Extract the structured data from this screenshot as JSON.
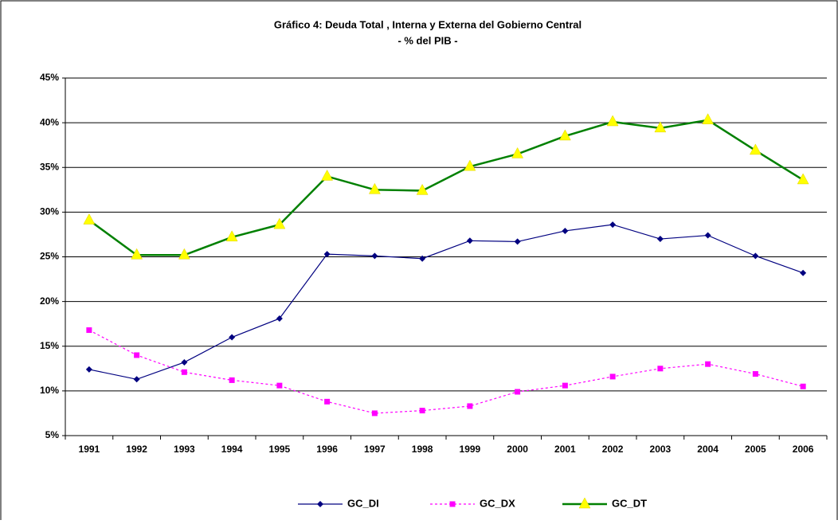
{
  "chart_data": {
    "type": "line",
    "title": "Gráfico 4: Deuda Total , Interna y Externa del Gobierno Central",
    "subtitle": "- % del PIB -",
    "categories": [
      "1991",
      "1992",
      "1993",
      "1994",
      "1995",
      "1996",
      "1997",
      "1998",
      "1999",
      "2000",
      "2001",
      "2002",
      "2003",
      "2004",
      "2005",
      "2006"
    ],
    "series": [
      {
        "name": "GC_DI",
        "color": "#000080",
        "marker": "diamond",
        "dash": false,
        "values": [
          12.4,
          11.3,
          13.2,
          16.0,
          18.1,
          25.3,
          25.1,
          24.8,
          26.8,
          26.7,
          27.9,
          28.6,
          27.0,
          27.4,
          25.1,
          23.2
        ]
      },
      {
        "name": "GC_DX",
        "color": "#ff00ff",
        "marker": "square",
        "dash": true,
        "values": [
          16.8,
          14.0,
          12.1,
          11.2,
          10.6,
          8.8,
          7.5,
          7.8,
          8.3,
          9.9,
          10.6,
          11.6,
          12.5,
          13.0,
          11.9,
          10.5
        ]
      },
      {
        "name": "GC_DT",
        "color": "#008000",
        "marker": "triangle",
        "dash": false,
        "values": [
          29.1,
          25.2,
          25.2,
          27.2,
          28.6,
          34.0,
          32.5,
          32.4,
          35.1,
          36.5,
          38.5,
          40.1,
          39.4,
          40.3,
          36.9,
          33.6
        ]
      }
    ],
    "ylim": [
      5,
      45
    ],
    "yticks": [
      {
        "value": 5,
        "label": "5%"
      },
      {
        "value": 10,
        "label": "10%"
      },
      {
        "value": 15,
        "label": "15%"
      },
      {
        "value": 20,
        "label": "20%"
      },
      {
        "value": 25,
        "label": "25%"
      },
      {
        "value": 30,
        "label": "30%"
      },
      {
        "value": 35,
        "label": "35%"
      },
      {
        "value": 40,
        "label": "40%"
      },
      {
        "value": 45,
        "label": "45%"
      }
    ],
    "grid": true,
    "legend": "bottom"
  }
}
